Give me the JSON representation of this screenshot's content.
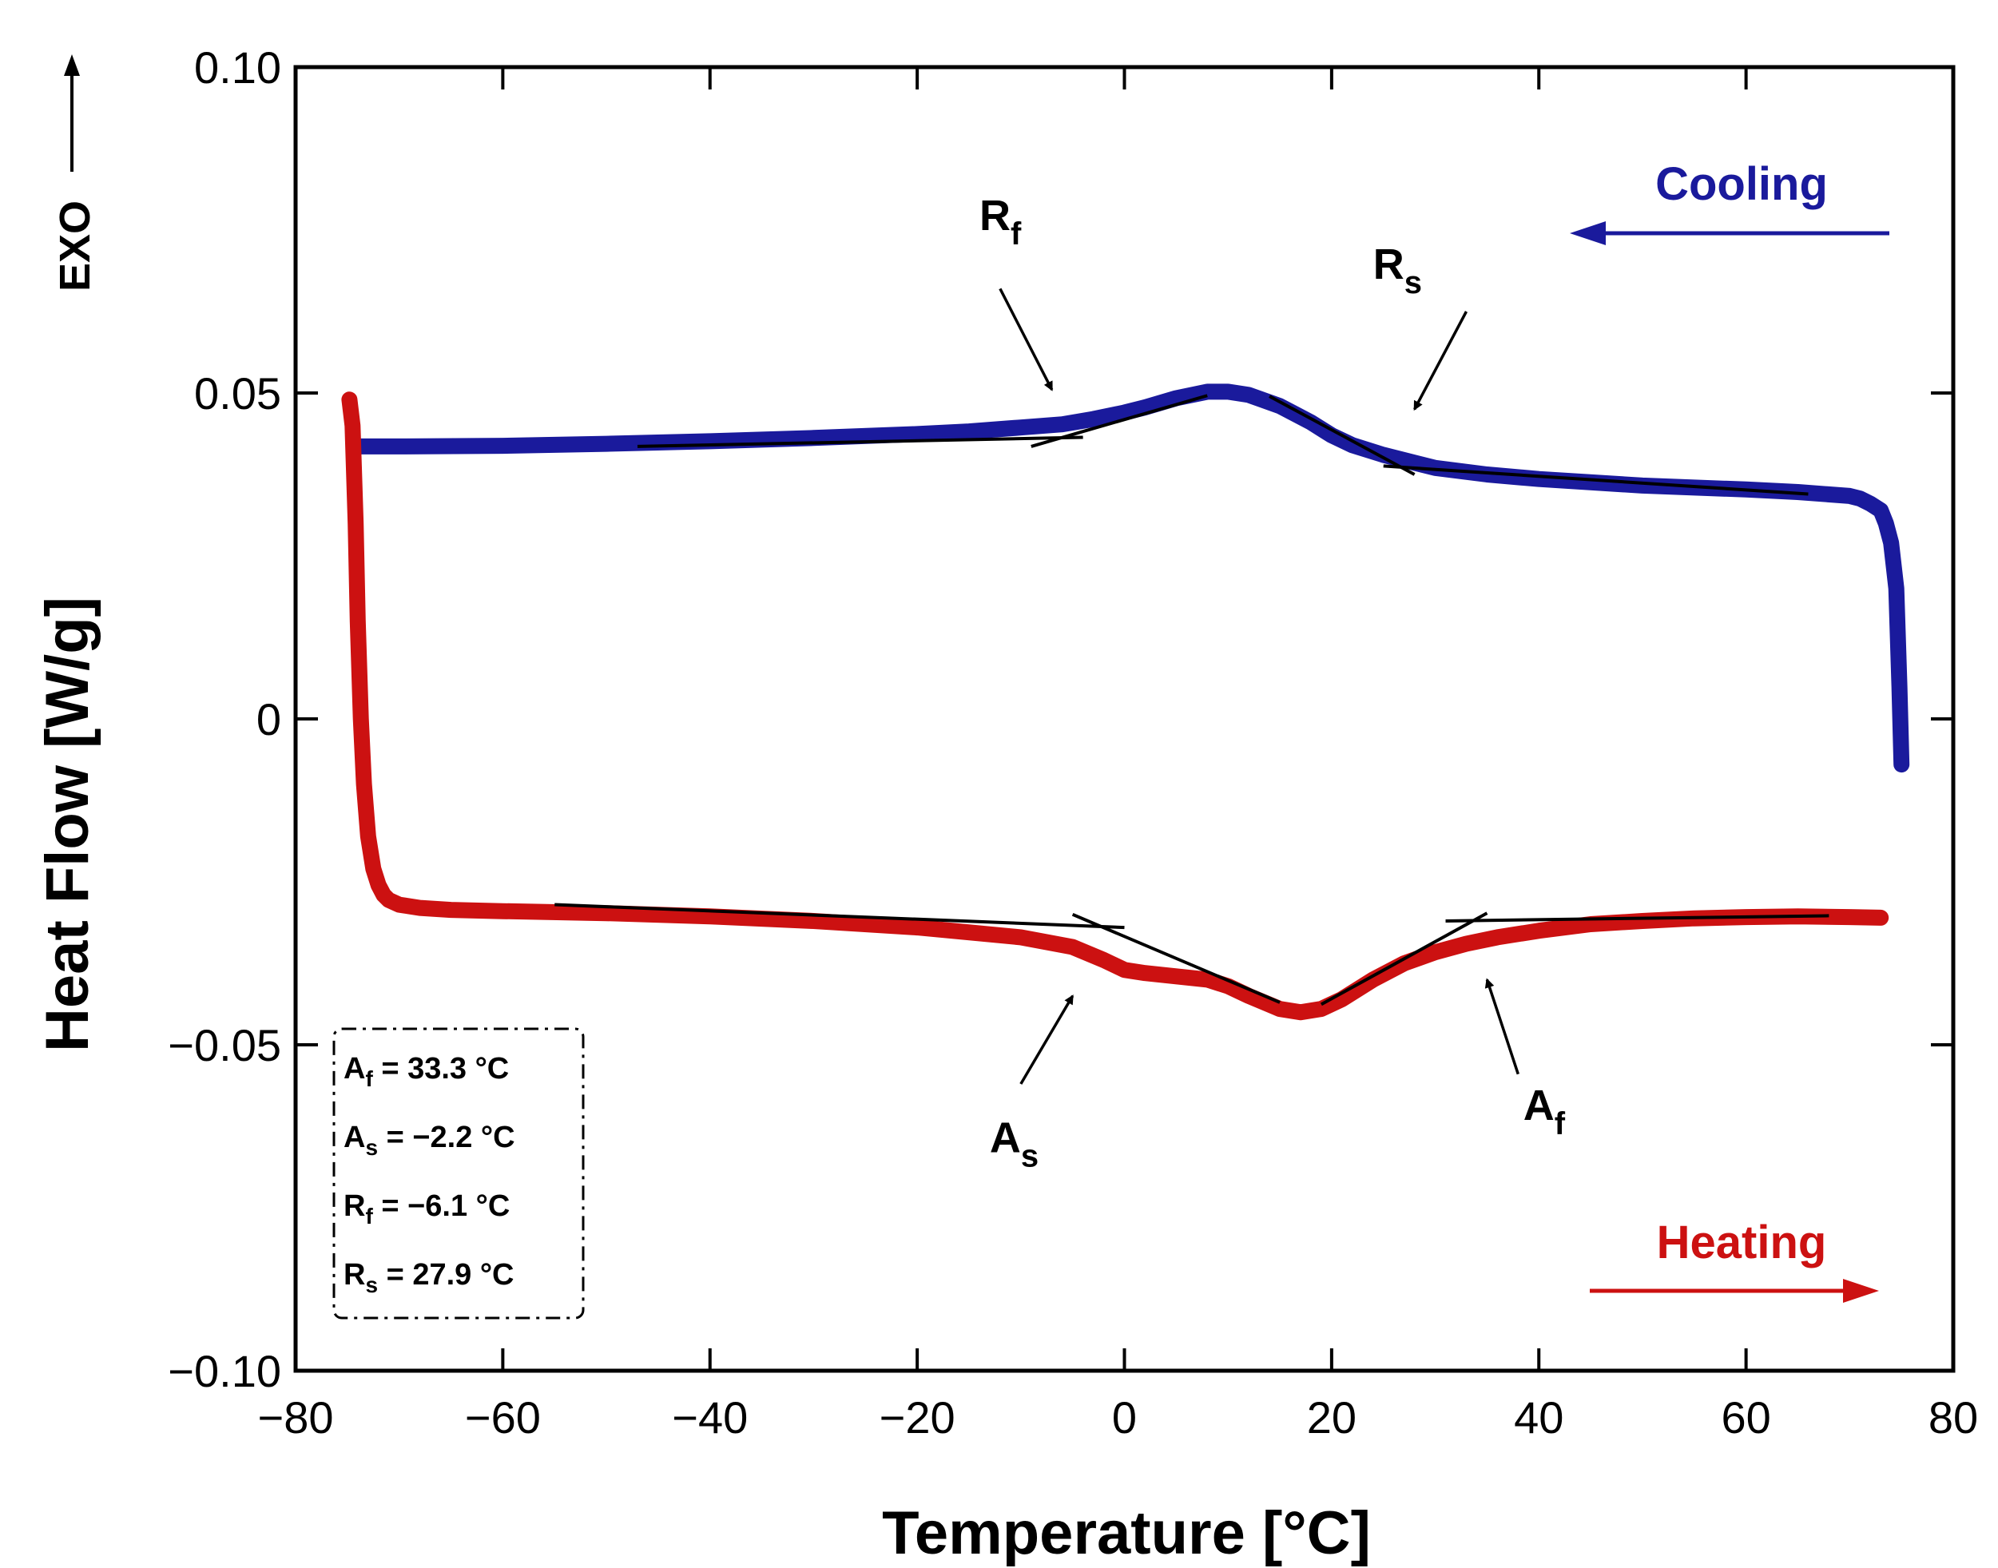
{
  "chart_data": {
    "type": "line",
    "title": "",
    "xlabel": "Temperature [°C]",
    "ylabel": "Heat Flow [W/g]",
    "xlim": [
      -80,
      80
    ],
    "ylim": [
      -0.1,
      0.1
    ],
    "x_ticks": [
      -80,
      -60,
      -40,
      -20,
      0,
      20,
      40,
      60,
      80
    ],
    "x_tick_labels": [
      "−80",
      "−60",
      "−40",
      "−20",
      "0",
      "20",
      "40",
      "60",
      "80"
    ],
    "y_ticks": [
      0.1,
      0.05,
      0,
      -0.05,
      -0.1
    ],
    "y_tick_labels": [
      "0.10",
      "0.05",
      "0",
      "−0.05",
      "−0.10"
    ],
    "exo_label": "EXO",
    "series": [
      {
        "name": "Cooling",
        "color": "#1a1a9c",
        "direction": "left",
        "x": [
          75,
          74.8,
          74.5,
          74,
          73.5,
          73,
          72,
          71,
          70,
          65,
          60,
          50,
          40,
          35,
          30,
          25,
          22,
          20,
          18,
          15,
          12,
          10,
          8,
          5,
          2,
          0,
          -3,
          -6,
          -10,
          -15,
          -20,
          -30,
          -40,
          -50,
          -60,
          -70,
          -74.3
        ],
        "values": [
          -0.007,
          0.005,
          0.02,
          0.027,
          0.03,
          0.032,
          0.033,
          0.0338,
          0.0342,
          0.0348,
          0.0352,
          0.0358,
          0.0368,
          0.0375,
          0.0385,
          0.0405,
          0.042,
          0.0435,
          0.0455,
          0.048,
          0.0497,
          0.0502,
          0.0502,
          0.0492,
          0.0478,
          0.047,
          0.046,
          0.0452,
          0.0447,
          0.0441,
          0.0437,
          0.0431,
          0.0426,
          0.0422,
          0.0419,
          0.0418,
          0.0418
        ]
      },
      {
        "name": "Heating",
        "color": "#cc1111",
        "direction": "right",
        "x": [
          -74.8,
          -74.5,
          -74.2,
          -74,
          -73.7,
          -73.4,
          -73,
          -72.5,
          -72,
          -71.5,
          -71,
          -70,
          -68,
          -65,
          -60,
          -50,
          -40,
          -30,
          -20,
          -10,
          -5,
          -2,
          0,
          2,
          5,
          8,
          10,
          12,
          15,
          17,
          19,
          21,
          24,
          27,
          30,
          33,
          36,
          40,
          45,
          50,
          55,
          60,
          65,
          70,
          73
        ],
        "values": [
          0.049,
          0.045,
          0.03,
          0.015,
          0.0,
          -0.01,
          -0.018,
          -0.023,
          -0.0255,
          -0.027,
          -0.0278,
          -0.0285,
          -0.029,
          -0.0293,
          -0.0295,
          -0.0298,
          -0.0303,
          -0.031,
          -0.032,
          -0.0335,
          -0.035,
          -0.037,
          -0.0385,
          -0.039,
          -0.0395,
          -0.04,
          -0.041,
          -0.0425,
          -0.0445,
          -0.045,
          -0.0445,
          -0.043,
          -0.04,
          -0.0375,
          -0.0358,
          -0.0345,
          -0.0335,
          -0.0325,
          -0.0315,
          -0.031,
          -0.0306,
          -0.0304,
          -0.0303,
          -0.0304,
          -0.0305
        ]
      }
    ],
    "tangents": [
      {
        "x": [
          -47,
          -4
        ],
        "y": [
          0.0418,
          0.0432
        ]
      },
      {
        "x": [
          -9,
          8
        ],
        "y": [
          0.0418,
          0.0496
        ]
      },
      {
        "x": [
          14,
          28
        ],
        "y": [
          0.0495,
          0.0375
        ]
      },
      {
        "x": [
          25,
          66
        ],
        "y": [
          0.0388,
          0.0345
        ]
      },
      {
        "x": [
          -55,
          0
        ],
        "y": [
          -0.0285,
          -0.032
        ]
      },
      {
        "x": [
          -5,
          15
        ],
        "y": [
          -0.03,
          -0.0435
        ]
      },
      {
        "x": [
          19,
          35
        ],
        "y": [
          -0.0438,
          -0.0298
        ]
      },
      {
        "x": [
          31,
          68
        ],
        "y": [
          -0.031,
          -0.0302
        ]
      }
    ],
    "annotations": [
      {
        "main": "R",
        "sub": "f",
        "text_x": -14,
        "text_y": 0.075,
        "arrow_from": [
          -12,
          0.066
        ],
        "arrow_to": [
          -7,
          0.0505
        ]
      },
      {
        "main": "R",
        "sub": "s",
        "text_x": 24,
        "text_y": 0.0675,
        "arrow_from": [
          33,
          0.0625
        ],
        "arrow_to": [
          28,
          0.0475
        ]
      },
      {
        "main": "A",
        "sub": "s",
        "text_x": -13,
        "text_y": -0.0665,
        "arrow_from": [
          -10,
          -0.056
        ],
        "arrow_to": [
          -5,
          -0.0425
        ]
      },
      {
        "main": "A",
        "sub": "f",
        "text_x": 38.5,
        "text_y": -0.0615,
        "arrow_from": [
          38,
          -0.0545
        ],
        "arrow_to": [
          35,
          -0.04
        ]
      }
    ],
    "legend": {
      "placement": "bottom-left",
      "entries": [
        {
          "main": "A",
          "sub": "f",
          "value": "= 33.3 °C"
        },
        {
          "main": "A",
          "sub": "s",
          "value": "= −2.2 °C"
        },
        {
          "main": "R",
          "sub": "f",
          "value": "= −6.1 °C"
        },
        {
          "main": "R",
          "sub": "s",
          "value": "= 27.9 °C"
        }
      ]
    },
    "direction_labels": [
      {
        "label": "Cooling",
        "color": "#1a1a9c",
        "arrow": "left",
        "placement": "top-right"
      },
      {
        "label": "Heating",
        "color": "#cc1111",
        "arrow": "right",
        "placement": "bottom-right"
      }
    ]
  }
}
